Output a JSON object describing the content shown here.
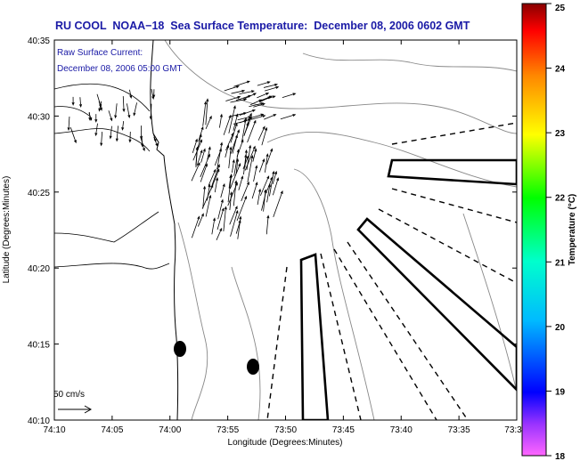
{
  "title": "RU COOL  NOAA−18  Sea Surface Temperature:  December 08, 2006 0602 GMT",
  "annotation": {
    "line1": "Raw Surface Current:",
    "line2": "December 08, 2006 05:00 GMT"
  },
  "scale_label": "50 cm/s",
  "axes": {
    "xlabel": "Longitude (Degrees:Minutes)",
    "ylabel": "Latitude (Degrees:Minutes)",
    "x_ticks": [
      "74:10",
      "74:05",
      "74:00",
      "73:55",
      "73:50",
      "73:45",
      "73:40",
      "73:35",
      "73:3"
    ],
    "y_ticks": [
      "40:35",
      "40:30",
      "40:25",
      "40:20",
      "40:15",
      "40:10"
    ]
  },
  "colorbar": {
    "label": "Temperature (°C)",
    "ticks": [
      "25",
      "24",
      "23",
      "22",
      "21",
      "20",
      "19",
      "18"
    ],
    "min": 18,
    "max": 25
  }
}
